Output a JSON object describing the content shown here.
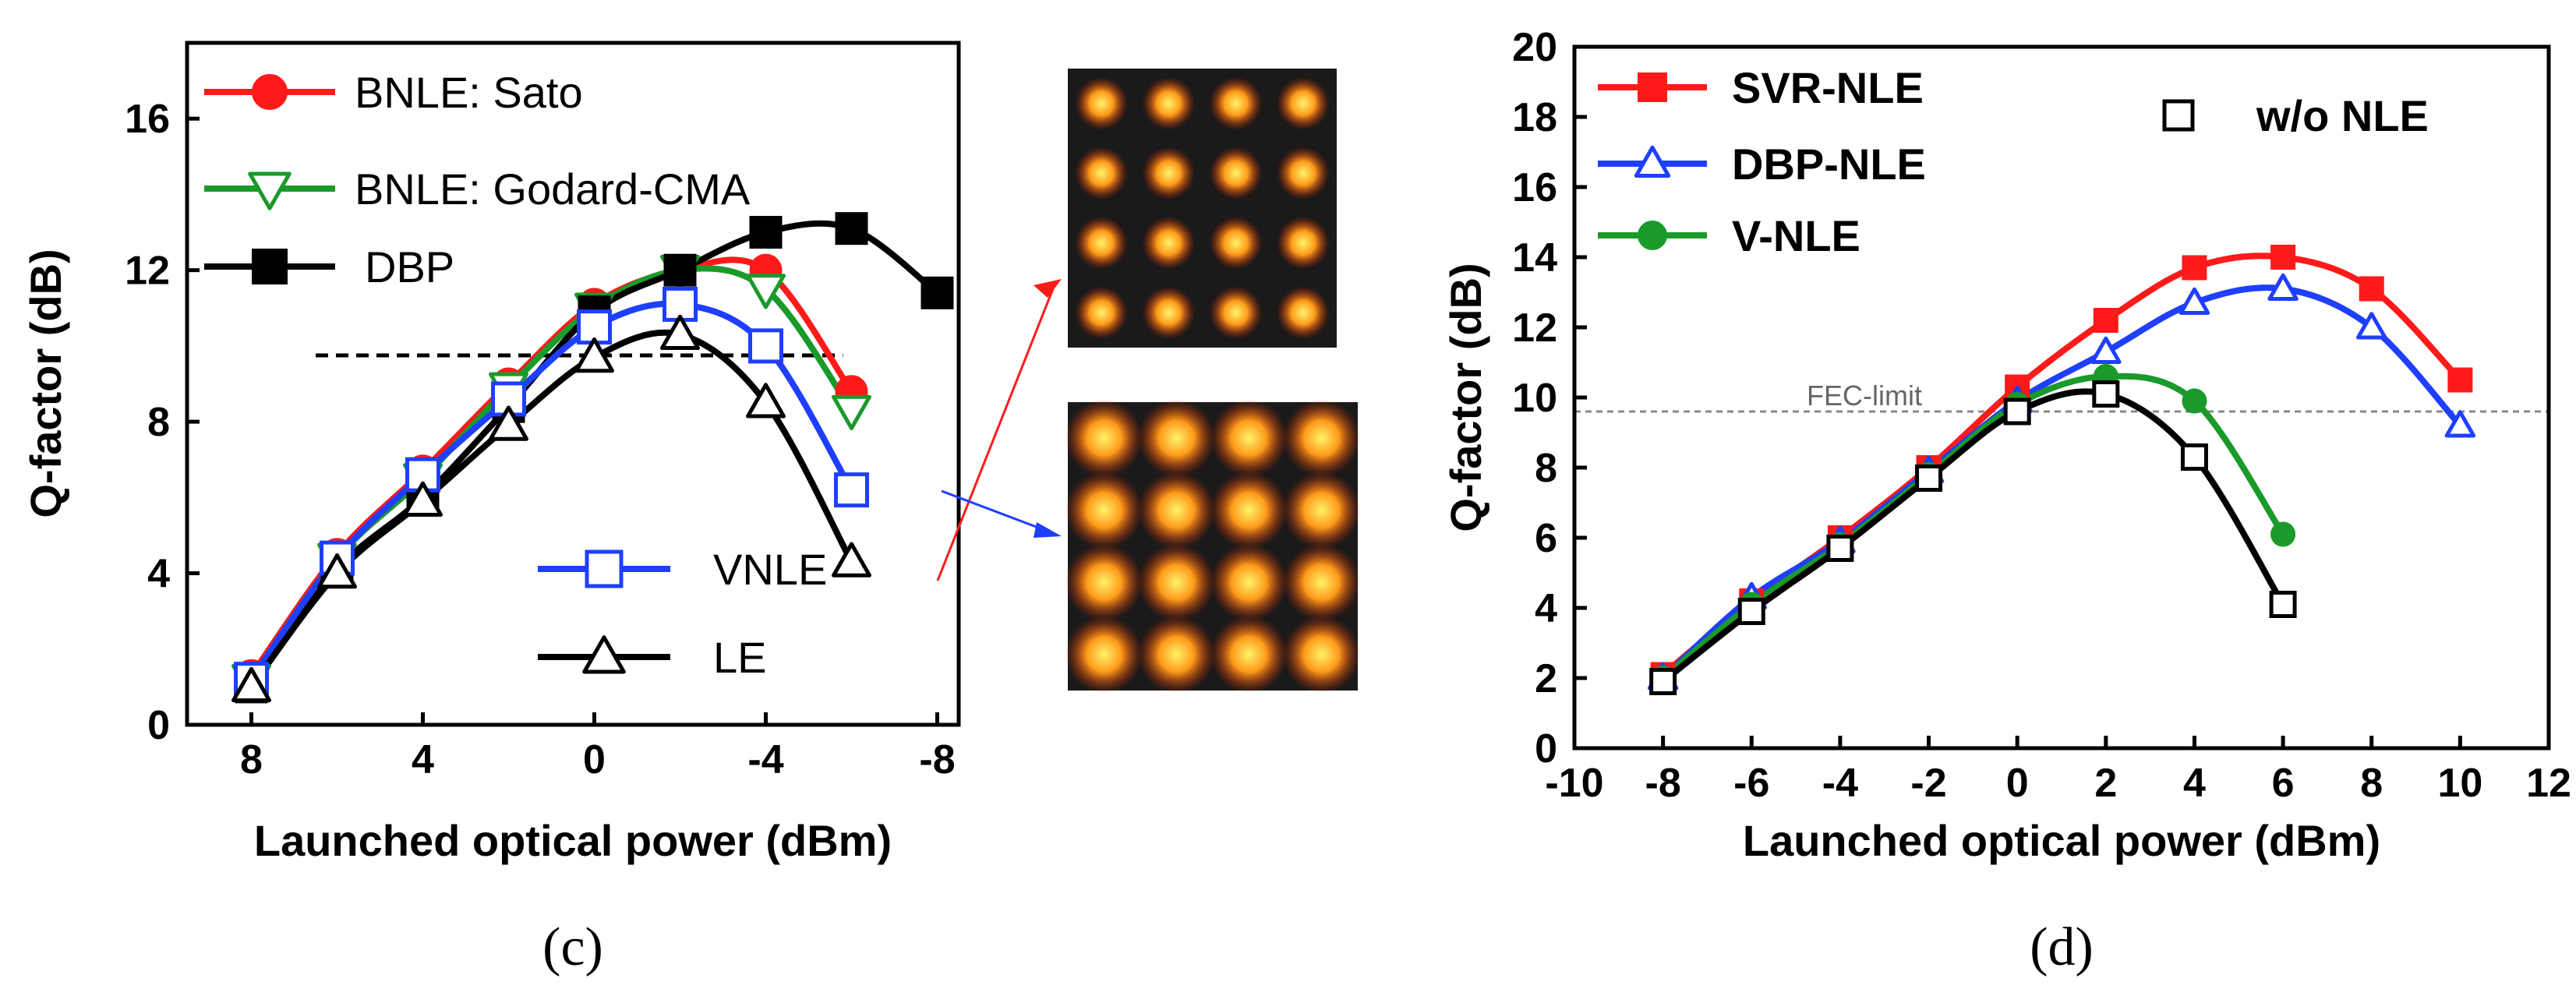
{
  "colors": {
    "red": "#ff1a1a",
    "green": "#1a9a2a",
    "black": "#000000",
    "blue": "#1f3fff",
    "constellation_bg": "#1a1a1a",
    "constellation_spot_hot": "#fff36a",
    "constellation_spot_mid": "#ff9a1a",
    "constellation_spot_edge": "#c82000"
  },
  "panel_labels": {
    "c": "(c)",
    "d": "(d)"
  },
  "fec_label": "FEC-limit",
  "chart_data": [
    {
      "panel": "c",
      "type": "line",
      "xlabel": "Launched optical power (dBm)",
      "ylabel": "Q-factor (dB)",
      "x_axis": "reversed",
      "xlim": [
        9.5,
        -8.5
      ],
      "ylim": [
        0,
        18
      ],
      "xticks": [
        8,
        4,
        0,
        -4,
        -8
      ],
      "xtick_labels": [
        "8",
        "4",
        "0",
        "-4",
        "-8"
      ],
      "yticks": [
        0,
        4,
        8,
        12,
        16
      ],
      "ytick_labels": [
        "0",
        "4",
        "8",
        "12",
        "16"
      ],
      "fec_threshold": 9.75,
      "series": [
        {
          "name": "BNLE: Sato",
          "color_key": "red",
          "marker": "circle",
          "x": [
            8,
            6,
            4,
            2,
            0,
            -2,
            -4,
            -6
          ],
          "y": [
            1.3,
            4.5,
            6.7,
            9.0,
            11.1,
            12.0,
            12.0,
            8.8
          ]
        },
        {
          "name": "BNLE: Godard-CMA",
          "color_key": "green",
          "marker": "triangle-down-open",
          "x": [
            8,
            6,
            4,
            2,
            0,
            -2,
            -4,
            -6
          ],
          "y": [
            1.2,
            4.4,
            6.5,
            8.9,
            11.0,
            12.0,
            11.5,
            8.3
          ]
        },
        {
          "name": "DBP",
          "color_key": "black",
          "marker": "square",
          "x": [
            8,
            6,
            4,
            2,
            0,
            -2,
            -4,
            -6,
            -8
          ],
          "y": [
            1.0,
            4.1,
            6.0,
            8.4,
            10.9,
            12.0,
            13.0,
            13.1,
            11.4
          ]
        },
        {
          "name": "VNLE",
          "color_key": "blue",
          "marker": "square-open",
          "x": [
            8,
            6,
            4,
            2,
            0,
            -2,
            -4,
            -6
          ],
          "y": [
            1.2,
            4.4,
            6.6,
            8.6,
            10.5,
            11.1,
            10.0,
            6.2
          ]
        },
        {
          "name": "LE",
          "color_key": "black",
          "marker": "triangle-up-open",
          "x": [
            8,
            6,
            4,
            2,
            0,
            -2,
            -4,
            -6
          ],
          "y": [
            1.0,
            4.0,
            5.9,
            7.9,
            9.7,
            10.3,
            8.5,
            4.3
          ]
        }
      ]
    },
    {
      "panel": "d",
      "type": "line",
      "xlabel": "Launched optical power (dBm)",
      "ylabel": "Q-factor (dB)",
      "xlim": [
        -10,
        12
      ],
      "ylim": [
        0,
        20
      ],
      "xticks": [
        -10,
        -8,
        -6,
        -4,
        -2,
        0,
        2,
        4,
        6,
        8,
        10,
        12
      ],
      "xtick_labels": [
        "-10",
        "-8",
        "-6",
        "-4",
        "-2",
        "0",
        "2",
        "4",
        "6",
        "8",
        "10",
        "12"
      ],
      "yticks": [
        0,
        2,
        4,
        6,
        8,
        10,
        12,
        14,
        16,
        18,
        20
      ],
      "ytick_labels": [
        "0",
        "2",
        "4",
        "6",
        "8",
        "10",
        "12",
        "14",
        "16",
        "18",
        "20"
      ],
      "fec_threshold": 9.6,
      "series": [
        {
          "name": "SVR-NLE",
          "color_key": "red",
          "marker": "square",
          "x": [
            -8,
            -6,
            -4,
            -2,
            0,
            2,
            4,
            6,
            8,
            10
          ],
          "y": [
            2.1,
            4.2,
            6.0,
            8.0,
            10.3,
            12.2,
            13.7,
            14.0,
            13.1,
            10.5
          ]
        },
        {
          "name": "DBP-NLE",
          "color_key": "blue",
          "marker": "triangle-up-open",
          "x": [
            -8,
            -6,
            -4,
            -2,
            0,
            2,
            4,
            6,
            8,
            10
          ],
          "y": [
            2.0,
            4.3,
            5.9,
            7.9,
            9.9,
            11.3,
            12.7,
            13.1,
            12.0,
            9.2
          ]
        },
        {
          "name": "V-NLE",
          "color_key": "green",
          "marker": "circle",
          "x": [
            -8,
            -6,
            -4,
            -2,
            0,
            2,
            4,
            6
          ],
          "y": [
            2.0,
            4.1,
            5.8,
            7.8,
            9.8,
            10.6,
            9.9,
            6.1
          ]
        },
        {
          "name": "w/o NLE",
          "color_key": "black",
          "marker": "square-open",
          "x": [
            -8,
            -6,
            -4,
            -2,
            0,
            2,
            4,
            6
          ],
          "y": [
            1.9,
            3.9,
            5.7,
            7.7,
            9.6,
            10.1,
            8.3,
            4.1
          ]
        }
      ]
    }
  ]
}
